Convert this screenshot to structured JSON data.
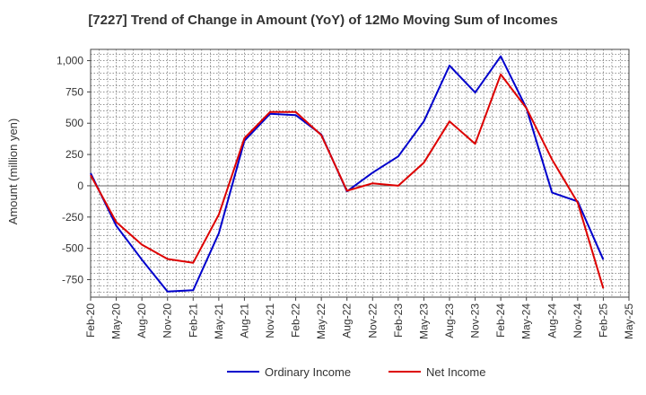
{
  "chart_data": {
    "type": "line",
    "title": "[7227]  Trend of Change in Amount (YoY) of 12Mo Moving Sum of Incomes",
    "ylabel": "Amount (million yen)",
    "xlabel": "",
    "ylim": [
      -890,
      1090
    ],
    "yticks": [
      1000,
      750,
      500,
      250,
      0,
      -250,
      -500,
      -750
    ],
    "ytick_labels": [
      "1,000",
      "750",
      "500",
      "250",
      "0",
      "-250",
      "-500",
      "-750"
    ],
    "x": [
      "Feb-20",
      "May-20",
      "Aug-20",
      "Nov-20",
      "Feb-21",
      "May-21",
      "Aug-21",
      "Nov-21",
      "Feb-22",
      "May-22",
      "Aug-22",
      "Nov-22",
      "Feb-23",
      "May-23",
      "Aug-23",
      "Nov-23",
      "Feb-24",
      "May-24",
      "Aug-24",
      "Nov-24",
      "Feb-25",
      "May-25"
    ],
    "grid": true,
    "legend_position": "bottom",
    "series": [
      {
        "name": "Ordinary Income",
        "color": "#0000cc",
        "values": [
          100,
          -320,
          -590,
          -845,
          -835,
          -380,
          360,
          575,
          565,
          410,
          -45,
          105,
          235,
          515,
          960,
          745,
          1035,
          620,
          -55,
          -125,
          -590,
          null
        ]
      },
      {
        "name": "Net Income",
        "color": "#dd0000",
        "values": [
          85,
          -290,
          -470,
          -585,
          -615,
          -230,
          380,
          590,
          590,
          405,
          -40,
          20,
          0,
          185,
          515,
          335,
          890,
          620,
          210,
          -135,
          -820,
          null
        ]
      }
    ]
  }
}
